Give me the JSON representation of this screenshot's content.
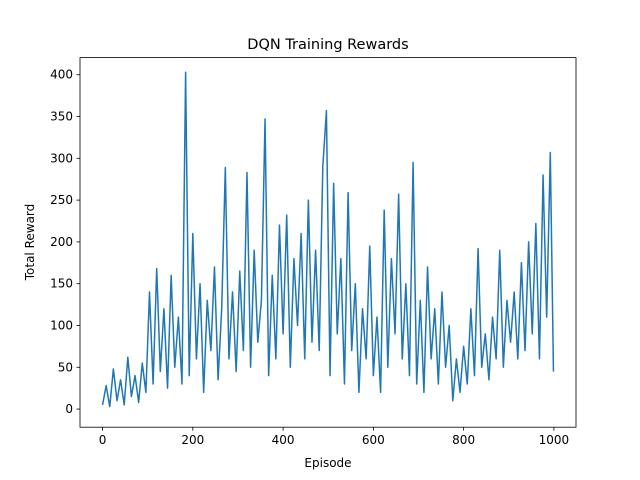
{
  "chart_data": {
    "type": "line",
    "title": "DQN Training Rewards",
    "xlabel": "Episode",
    "ylabel": "Total Reward",
    "x": [
      0,
      8,
      16,
      24,
      32,
      40,
      48,
      56,
      64,
      72,
      80,
      88,
      96,
      104,
      112,
      120,
      128,
      136,
      144,
      152,
      160,
      168,
      176,
      184,
      192,
      200,
      208,
      216,
      224,
      232,
      240,
      248,
      256,
      264,
      272,
      280,
      288,
      296,
      304,
      312,
      320,
      328,
      336,
      344,
      352,
      360,
      368,
      376,
      384,
      392,
      400,
      408,
      416,
      424,
      432,
      440,
      448,
      456,
      464,
      472,
      480,
      488,
      496,
      504,
      512,
      520,
      528,
      536,
      544,
      552,
      560,
      568,
      576,
      584,
      592,
      600,
      608,
      616,
      624,
      632,
      640,
      648,
      656,
      664,
      672,
      680,
      688,
      696,
      704,
      712,
      720,
      728,
      736,
      744,
      752,
      760,
      768,
      776,
      784,
      792,
      800,
      808,
      816,
      824,
      832,
      840,
      848,
      856,
      864,
      872,
      880,
      888,
      896,
      904,
      912,
      920,
      928,
      936,
      944,
      952,
      960,
      968,
      976,
      984,
      992,
      999
    ],
    "values": [
      5,
      28,
      3,
      48,
      10,
      35,
      5,
      62,
      15,
      40,
      8,
      55,
      20,
      140,
      30,
      168,
      45,
      120,
      25,
      160,
      50,
      110,
      30,
      403,
      40,
      210,
      60,
      150,
      20,
      130,
      70,
      170,
      35,
      120,
      289,
      60,
      140,
      45,
      165,
      70,
      283,
      50,
      190,
      80,
      130,
      347,
      40,
      160,
      60,
      220,
      90,
      232,
      50,
      180,
      100,
      210,
      60,
      250,
      80,
      190,
      70,
      290,
      357,
      40,
      270,
      90,
      180,
      30,
      259,
      70,
      150,
      20,
      120,
      60,
      195,
      40,
      110,
      20,
      238,
      50,
      180,
      90,
      257,
      60,
      150,
      40,
      295,
      30,
      130,
      20,
      170,
      60,
      120,
      30,
      140,
      50,
      100,
      10,
      60,
      20,
      75,
      30,
      120,
      40,
      192,
      50,
      90,
      35,
      110,
      60,
      190,
      50,
      130,
      80,
      140,
      60,
      175,
      70,
      200,
      90,
      222,
      60,
      280,
      110,
      307,
      45
    ],
    "color": "#1f77b4",
    "xlim": [
      -49.95,
      1048.95
    ],
    "ylim": [
      -21.7,
      420.5
    ],
    "xticks": [
      0,
      200,
      400,
      600,
      800,
      1000
    ],
    "yticks": [
      0,
      50,
      100,
      150,
      200,
      250,
      300,
      350,
      400
    ]
  }
}
